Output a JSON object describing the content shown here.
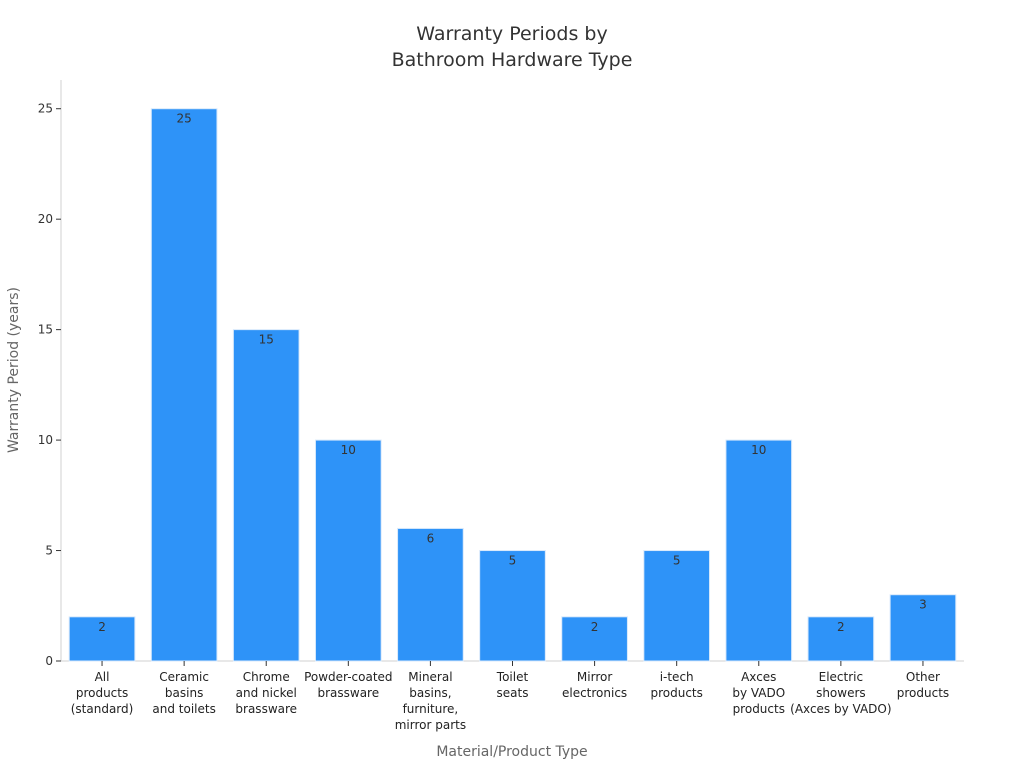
{
  "chart_data": {
    "type": "bar",
    "title": [
      "Warranty Periods by",
      "Bathroom Hardware Type"
    ],
    "xlabel": "Material/Product Type",
    "ylabel": "Warranty Period (years)",
    "ylim": [
      0,
      26.3
    ],
    "yticks": [
      0,
      5,
      10,
      15,
      20,
      25
    ],
    "grid": false,
    "color": "#2e93f8",
    "categories": [
      [
        "All",
        "products",
        "(standard)"
      ],
      [
        "Ceramic",
        "basins",
        "and toilets"
      ],
      [
        "Chrome",
        "and nickel",
        "brassware"
      ],
      [
        "Powder-coated",
        "brassware"
      ],
      [
        "Mineral",
        "basins,",
        "furniture,",
        "mirror parts"
      ],
      [
        "Toilet",
        "seats"
      ],
      [
        "Mirror",
        "electronics"
      ],
      [
        "i-tech",
        "products"
      ],
      [
        "Axces",
        "by VADO",
        "products"
      ],
      [
        "Electric",
        "showers",
        "(Axces by VADO)"
      ],
      [
        "Other",
        "products"
      ]
    ],
    "values": [
      2,
      25,
      15,
      10,
      6,
      5,
      2,
      5,
      10,
      2,
      3
    ]
  }
}
